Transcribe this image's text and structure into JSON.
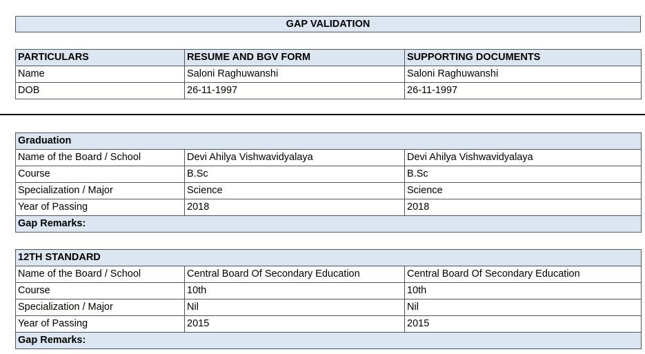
{
  "header": {
    "title": "GAP VALIDATION"
  },
  "table": {
    "columns": [
      "PARTICULARS",
      "RESUME AND BGV FORM",
      "SUPPORTING DOCUMENTS"
    ],
    "rows": [
      [
        "Name",
        "Saloni Raghuwanshi",
        "Saloni Raghuwanshi"
      ],
      [
        "DOB",
        "26-11-1997",
        "26-11-1997"
      ]
    ]
  },
  "sections": [
    {
      "title": "Graduation",
      "rows": [
        [
          "Name of the Board / School",
          "Devi Ahilya Vishwavidyalaya",
          "Devi Ahilya Vishwavidyalaya"
        ],
        [
          "Course",
          "B.Sc",
          "B.Sc"
        ],
        [
          "Specialization / Major",
          "Science",
          "Science"
        ],
        [
          "Year of Passing",
          "2018",
          "2018"
        ]
      ],
      "remarks": "Gap Remarks:"
    },
    {
      "title": "12TH STANDARD",
      "rows": [
        [
          "Name of the Board / School",
          "Central Board Of Secondary Education",
          "Central Board Of Secondary Education"
        ],
        [
          "Course",
          "10th",
          "10th"
        ],
        [
          "Specialization / Major",
          "Nil",
          "Nil"
        ],
        [
          "Year of Passing",
          "2015",
          "2015"
        ]
      ],
      "remarks": "Gap Remarks:"
    }
  ]
}
